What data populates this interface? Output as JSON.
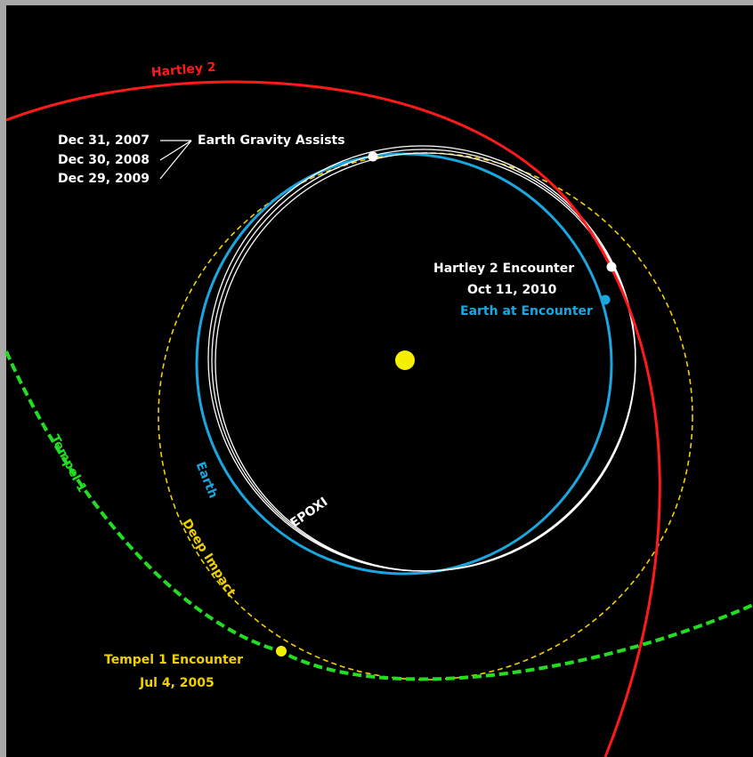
{
  "orbits": [
    {
      "label": "Hartley 2"
    },
    {
      "label": "Tempel 1"
    },
    {
      "label": "Earth"
    },
    {
      "label": "EPOXI"
    },
    {
      "label": "Deep Impact"
    }
  ],
  "gravity_assists": {
    "dates": [
      "Dec 31, 2007",
      "Dec 30, 2008",
      "Dec 29, 2009"
    ],
    "label": "Earth Gravity Assists"
  },
  "hartley_encounter": {
    "label": "Hartley 2 Encounter",
    "date": "Oct 11, 2010",
    "earth_label": "Earth at Encounter"
  },
  "tempel_encounter": {
    "label": "Tempel 1 Encounter",
    "date": "Jul 4, 2005"
  }
}
